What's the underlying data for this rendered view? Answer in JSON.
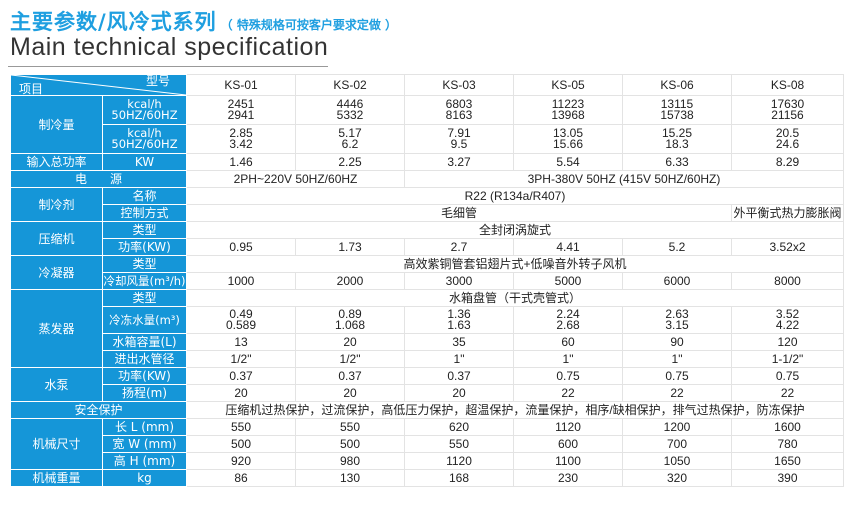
{
  "title": {
    "zh": "主要参数/风冷式系列",
    "note": "（ 特殊规格可按客户要求定做 ）",
    "en": "Main technical specification"
  },
  "header": {
    "model_label": "型号",
    "item_label": "项目",
    "models": [
      "KS-01",
      "KS-02",
      "KS-03",
      "KS-05",
      "KS-06",
      "KS-08"
    ]
  },
  "rows": {
    "cooling": {
      "label": "制冷量",
      "kcal_label": "kcal/h",
      "hz1_label": "50HZ/60HZ",
      "kcal2_label": "kcal/h",
      "hz2_label": "50HZ/60HZ",
      "kcal": [
        "2451",
        "4446",
        "6803",
        "11223",
        "13115",
        "17630"
      ],
      "kcal_hz": [
        "2941",
        "5332",
        "8163",
        "13968",
        "15738",
        "21156"
      ],
      "kcal2": [
        "2.85",
        "5.17",
        "7.91",
        "13.05",
        "15.25",
        "20.5"
      ],
      "kcal2_hz": [
        "3.42",
        "6.2",
        "9.5",
        "15.66",
        "18.3",
        "24.6"
      ]
    },
    "power": {
      "label": "输入总功率",
      "unit": "KW",
      "values": [
        "1.46",
        "2.25",
        "3.27",
        "5.54",
        "6.33",
        "8.29"
      ]
    },
    "supply": {
      "label_a": "电",
      "label_b": "源",
      "left": "2PH~220V  50HZ/60HZ",
      "right": "3PH-380V  50HZ (415V  50HZ/60HZ)"
    },
    "refrigerant": {
      "label": "制冷剂",
      "name_label": "名称",
      "name_value": "R22 (R134a/R407)",
      "control_label": "控制方式",
      "control_value": "毛细管",
      "control_value_08": "外平衡式热力膨胀阀"
    },
    "compressor": {
      "label": "压缩机",
      "type_label": "类型",
      "type_value": "全封闭涡旋式",
      "power_label": "功率(KW)",
      "power": [
        "0.95",
        "1.73",
        "2.7",
        "4.41",
        "5.2",
        "3.52x2"
      ]
    },
    "condenser": {
      "label": "冷凝器",
      "type_label": "类型",
      "type_value": "高效紫铜管套铝翅片式+低噪音外转子风机",
      "air_label": "冷却风量(m³/h)",
      "air": [
        "1000",
        "2000",
        "3000",
        "5000",
        "6000",
        "8000"
      ]
    },
    "evaporator": {
      "label": "蒸发器",
      "type_label": "类型",
      "type_value": "水箱盘管（干式壳管式）",
      "flow_label": "冷冻水量(m³)",
      "flow_a": [
        "0.49",
        "0.89",
        "1.36",
        "2.24",
        "2.63",
        "3.52"
      ],
      "flow_b": [
        "0.589",
        "1.068",
        "1.63",
        "2.68",
        "3.15",
        "4.22"
      ],
      "tank_label": "水箱容量(L)",
      "tank": [
        "13",
        "20",
        "35",
        "60",
        "90",
        "120"
      ],
      "pipe_label": "进出水管径",
      "pipe": [
        "1/2\"",
        "1/2\"",
        "1\"",
        "1\"",
        "1\"",
        "1-1/2\""
      ]
    },
    "pump": {
      "label": "水泵",
      "power_label": "功率(KW)",
      "power": [
        "0.37",
        "0.37",
        "0.37",
        "0.75",
        "0.75",
        "0.75"
      ],
      "head_label": "扬程(m)",
      "head": [
        "20",
        "20",
        "20",
        "22",
        "22",
        "22"
      ]
    },
    "safety": {
      "label": "安全保护",
      "value": "压缩机过热保护，过流保护，高低压力保护，超温保护，流量保护，相序/缺相保护，排气过热保护，防冻保护"
    },
    "size": {
      "label": "机械尺寸",
      "l_label": "长 L (mm)",
      "l": [
        "550",
        "550",
        "620",
        "1120",
        "1200",
        "1600"
      ],
      "w_label": "宽 W (mm)",
      "w": [
        "500",
        "500",
        "550",
        "600",
        "700",
        "780"
      ],
      "h_label": "高 H (mm)",
      "h": [
        "920",
        "980",
        "1120",
        "1100",
        "1050",
        "1650"
      ]
    },
    "weight": {
      "label": "机械重量",
      "unit": "kg",
      "values": [
        "86",
        "130",
        "168",
        "230",
        "320",
        "390"
      ]
    }
  },
  "colors": {
    "header_blue": "#1596d8",
    "title_blue": "#1f9fe0"
  }
}
